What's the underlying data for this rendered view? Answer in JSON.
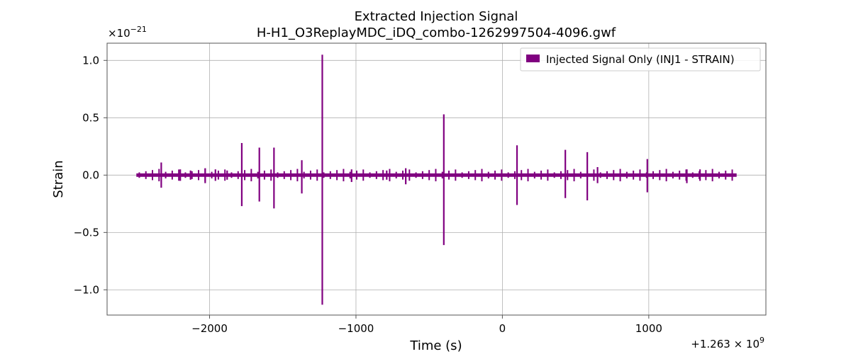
{
  "chart_data": {
    "type": "line",
    "title": "Extracted Injection Signal",
    "subtitle": "H-H1_O3ReplayMDC_iDQ_combo-1262997504-4096.gwf",
    "xlabel": "Time (s)",
    "ylabel": "Strain",
    "x_offset_label": "+1.263×10^9",
    "y_scale_label": "×10^−21",
    "xlim": [
      -2700,
      1800
    ],
    "ylim": [
      -1.22,
      1.15
    ],
    "x_ticks": [
      -2000,
      -1000,
      0,
      1000
    ],
    "x_tick_labels": [
      "−2000",
      "−1000",
      "0",
      "1000"
    ],
    "y_ticks": [
      -1.0,
      -0.5,
      0.0,
      0.5,
      1.0
    ],
    "y_tick_labels": [
      "−1.0",
      "−0.5",
      "0.0",
      "0.5",
      "1.0"
    ],
    "grid": true,
    "legend_position": "top-right",
    "series": [
      {
        "name": "Injected Signal Only (INJ1 - STRAIN)",
        "color": "#800080",
        "x_range": [
          -2500,
          1600
        ],
        "baseline_amplitude": 0.015,
        "spikes": [
          {
            "x": -2330,
            "max": 0.11,
            "min": -0.11
          },
          {
            "x": -2200,
            "max": 0.05,
            "min": -0.05
          },
          {
            "x": -2130,
            "max": 0.04,
            "min": -0.04
          },
          {
            "x": -2030,
            "max": 0.06,
            "min": -0.07
          },
          {
            "x": -1960,
            "max": 0.05,
            "min": -0.05
          },
          {
            "x": -1880,
            "max": 0.04,
            "min": -0.04
          },
          {
            "x": -1780,
            "max": 0.28,
            "min": -0.27
          },
          {
            "x": -1660,
            "max": 0.24,
            "min": -0.23
          },
          {
            "x": -1560,
            "max": 0.24,
            "min": -0.29
          },
          {
            "x": -1370,
            "max": 0.13,
            "min": -0.16
          },
          {
            "x": -1230,
            "max": 1.05,
            "min": -1.13
          },
          {
            "x": -1030,
            "max": 0.05,
            "min": -0.06
          },
          {
            "x": -790,
            "max": 0.04,
            "min": -0.04
          },
          {
            "x": -660,
            "max": 0.06,
            "min": -0.08
          },
          {
            "x": -400,
            "max": 0.53,
            "min": -0.61
          },
          {
            "x": 100,
            "max": 0.26,
            "min": -0.26
          },
          {
            "x": 430,
            "max": 0.22,
            "min": -0.2
          },
          {
            "x": 580,
            "max": 0.2,
            "min": -0.22
          },
          {
            "x": 650,
            "max": 0.07,
            "min": -0.07
          },
          {
            "x": 990,
            "max": 0.14,
            "min": -0.15
          },
          {
            "x": 1260,
            "max": 0.05,
            "min": -0.07
          },
          {
            "x": 1350,
            "max": 0.05,
            "min": -0.05
          }
        ]
      }
    ]
  }
}
